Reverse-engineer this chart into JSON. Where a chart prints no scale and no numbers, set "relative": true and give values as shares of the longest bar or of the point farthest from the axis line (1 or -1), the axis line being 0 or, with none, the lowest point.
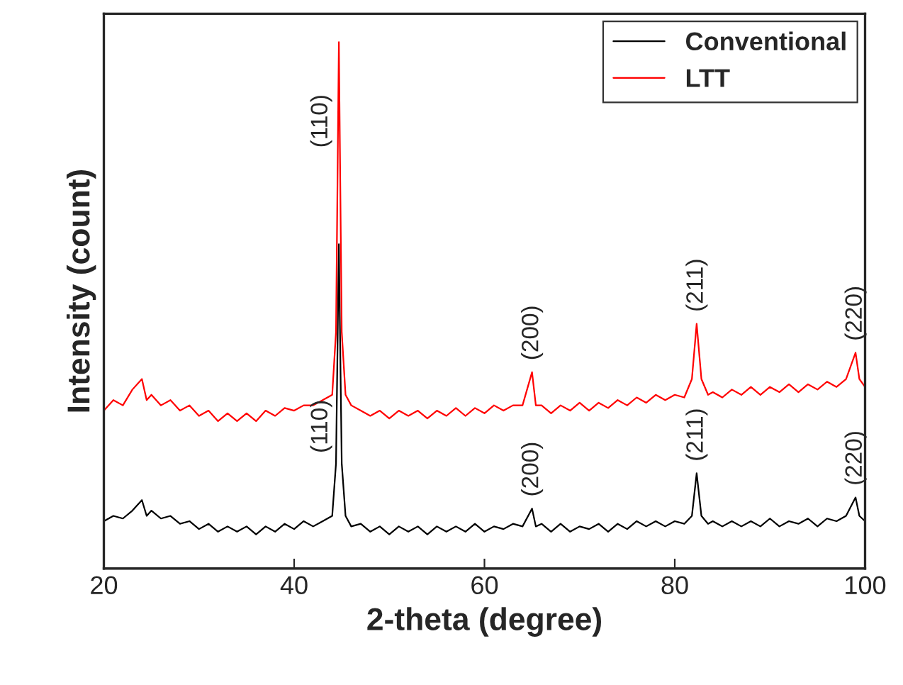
{
  "chart_data": {
    "type": "line",
    "relative": true,
    "xlabel": "2-theta (degree)",
    "ylabel": "Intensity (count)",
    "xlim": [
      20,
      100
    ],
    "xticks": [
      20,
      40,
      60,
      80,
      100
    ],
    "legend": "top right",
    "grid": false,
    "marker": "none",
    "line_style": "solid",
    "tick_labels": "x",
    "series": [
      {
        "name": "Conventional",
        "color": "#000000",
        "x": [
          20,
          21,
          22,
          23,
          24,
          24.5,
          25,
          26,
          27,
          28,
          29,
          30,
          31,
          32,
          33,
          34,
          35,
          36,
          37,
          38,
          39,
          40,
          41,
          42,
          43,
          44,
          44.4,
          44.7,
          45,
          45.4,
          46,
          47,
          48,
          49,
          50,
          51,
          52,
          53,
          54,
          55,
          56,
          57,
          58,
          59,
          60,
          61,
          62,
          63,
          64,
          65,
          65.4,
          66,
          67,
          68,
          69,
          70,
          71,
          72,
          73,
          74,
          75,
          76,
          77,
          78,
          79,
          80,
          81,
          81.8,
          82.3,
          82.8,
          83.5,
          84,
          85,
          86,
          87,
          88,
          89,
          90,
          91,
          92,
          93,
          94,
          95,
          96,
          97,
          98,
          99,
          99.4,
          100
        ],
        "values": [
          0.09,
          0.1,
          0.095,
          0.11,
          0.13,
          0.1,
          0.11,
          0.095,
          0.1,
          0.085,
          0.09,
          0.075,
          0.085,
          0.07,
          0.08,
          0.07,
          0.08,
          0.065,
          0.08,
          0.07,
          0.085,
          0.075,
          0.09,
          0.08,
          0.09,
          0.1,
          0.2,
          0.616,
          0.2,
          0.1,
          0.08,
          0.085,
          0.07,
          0.08,
          0.065,
          0.08,
          0.07,
          0.08,
          0.065,
          0.08,
          0.07,
          0.08,
          0.07,
          0.085,
          0.07,
          0.08,
          0.075,
          0.085,
          0.08,
          0.114,
          0.08,
          0.085,
          0.07,
          0.085,
          0.07,
          0.08,
          0.075,
          0.085,
          0.07,
          0.085,
          0.075,
          0.09,
          0.08,
          0.09,
          0.08,
          0.09,
          0.085,
          0.1,
          0.181,
          0.1,
          0.085,
          0.09,
          0.08,
          0.09,
          0.08,
          0.09,
          0.08,
          0.095,
          0.08,
          0.09,
          0.085,
          0.095,
          0.08,
          0.095,
          0.09,
          0.1,
          0.135,
          0.1,
          0.09
        ]
      },
      {
        "name": "LTT",
        "color": "#ff0000",
        "x": [
          20,
          21,
          22,
          23,
          24,
          24.5,
          25,
          26,
          27,
          28,
          29,
          30,
          31,
          32,
          33,
          34,
          35,
          36,
          37,
          38,
          39,
          40,
          41,
          42,
          43,
          44,
          44.4,
          44.7,
          45,
          45.4,
          46,
          47,
          48,
          49,
          50,
          51,
          52,
          53,
          54,
          55,
          56,
          57,
          58,
          59,
          60,
          61,
          62,
          63,
          64,
          65,
          65.4,
          66,
          67,
          68,
          69,
          70,
          71,
          72,
          73,
          74,
          75,
          76,
          77,
          78,
          79,
          80,
          81,
          81.8,
          82.3,
          82.8,
          83.5,
          84,
          85,
          86,
          87,
          88,
          89,
          90,
          91,
          92,
          93,
          94,
          95,
          96,
          97,
          98,
          99,
          99.4,
          100
        ],
        "values": [
          0.3,
          0.32,
          0.31,
          0.34,
          0.36,
          0.32,
          0.33,
          0.31,
          0.32,
          0.3,
          0.31,
          0.29,
          0.3,
          0.28,
          0.295,
          0.28,
          0.295,
          0.28,
          0.3,
          0.29,
          0.305,
          0.3,
          0.31,
          0.31,
          0.32,
          0.33,
          0.45,
          1.0,
          0.45,
          0.33,
          0.31,
          0.3,
          0.29,
          0.3,
          0.285,
          0.3,
          0.29,
          0.3,
          0.285,
          0.3,
          0.29,
          0.305,
          0.29,
          0.305,
          0.295,
          0.31,
          0.3,
          0.31,
          0.31,
          0.373,
          0.31,
          0.31,
          0.295,
          0.31,
          0.3,
          0.315,
          0.3,
          0.315,
          0.305,
          0.32,
          0.31,
          0.325,
          0.315,
          0.33,
          0.32,
          0.33,
          0.325,
          0.36,
          0.465,
          0.36,
          0.33,
          0.335,
          0.325,
          0.34,
          0.33,
          0.345,
          0.33,
          0.345,
          0.335,
          0.35,
          0.335,
          0.35,
          0.34,
          0.355,
          0.345,
          0.36,
          0.41,
          0.36,
          0.345
        ]
      }
    ],
    "annotations": [
      {
        "text": "(110)",
        "x": 44.7,
        "y": 0.85
      },
      {
        "text": "(200)",
        "x": 65,
        "y": 0.373
      },
      {
        "text": "(211)",
        "x": 82.3,
        "y": 0.465
      },
      {
        "text": "(220)",
        "x": 99,
        "y": 0.41
      },
      {
        "text": "(110)",
        "x": 44.7,
        "y": 0.27
      },
      {
        "text": "(200)",
        "x": 65,
        "y": 0.114
      },
      {
        "text": "(211)",
        "x": 82.3,
        "y": 0.181
      },
      {
        "text": "(220)",
        "x": 99,
        "y": 0.135
      }
    ]
  }
}
